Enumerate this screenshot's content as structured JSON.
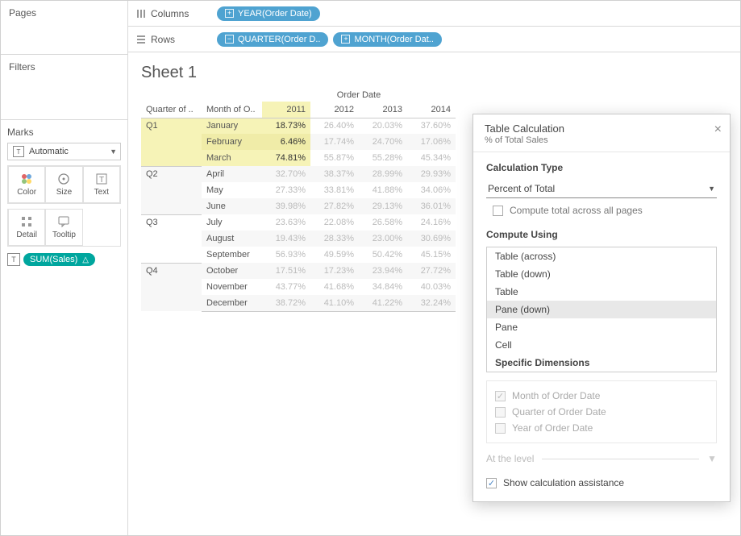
{
  "leftPanels": {
    "pages": "Pages",
    "filters": "Filters",
    "marks": "Marks",
    "marksType": "Automatic",
    "cells": {
      "color": "Color",
      "size": "Size",
      "text": "Text",
      "detail": "Detail",
      "tooltip": "Tooltip"
    },
    "sumPill": "SUM(Sales)"
  },
  "shelves": {
    "columns": "Columns",
    "rows": "Rows",
    "colPill": "YEAR(Order Date)",
    "rowPill1": "QUARTER(Order D..",
    "rowPill2": "MONTH(Order Dat.."
  },
  "sheet": {
    "title": "Sheet 1",
    "superHeader": "Order Date",
    "rowHdr1": "Quarter of ..",
    "rowHdr2": "Month of O..",
    "years": [
      "2011",
      "2012",
      "2013",
      "2014"
    ],
    "highlightYearIndex": 0,
    "quarters": [
      {
        "q": "Q1",
        "months": [
          "January",
          "February",
          "March"
        ],
        "vals": [
          [
            "18.73%",
            "26.40%",
            "20.03%",
            "37.60%"
          ],
          [
            "6.46%",
            "17.74%",
            "24.70%",
            "17.06%"
          ],
          [
            "74.81%",
            "55.87%",
            "55.28%",
            "45.34%"
          ]
        ]
      },
      {
        "q": "Q2",
        "months": [
          "April",
          "May",
          "June"
        ],
        "vals": [
          [
            "32.70%",
            "38.37%",
            "28.99%",
            "29.93%"
          ],
          [
            "27.33%",
            "33.81%",
            "41.88%",
            "34.06%"
          ],
          [
            "39.98%",
            "27.82%",
            "29.13%",
            "36.01%"
          ]
        ]
      },
      {
        "q": "Q3",
        "months": [
          "July",
          "August",
          "September"
        ],
        "vals": [
          [
            "23.63%",
            "22.08%",
            "26.58%",
            "24.16%"
          ],
          [
            "19.43%",
            "28.33%",
            "23.00%",
            "30.69%"
          ],
          [
            "56.93%",
            "49.59%",
            "50.42%",
            "45.15%"
          ]
        ]
      },
      {
        "q": "Q4",
        "months": [
          "October",
          "November",
          "December"
        ],
        "vals": [
          [
            "17.51%",
            "17.23%",
            "23.94%",
            "27.72%"
          ],
          [
            "43.77%",
            "41.68%",
            "34.84%",
            "40.03%"
          ],
          [
            "38.72%",
            "41.10%",
            "41.22%",
            "32.24%"
          ]
        ]
      }
    ]
  },
  "dialog": {
    "title": "Table Calculation",
    "subtitle": "% of Total Sales",
    "calcTypeLabel": "Calculation Type",
    "calcTypeValue": "Percent of Total",
    "computeAllPages": "Compute total across all pages",
    "computeUsingLabel": "Compute Using",
    "options": [
      "Table (across)",
      "Table (down)",
      "Table",
      "Pane (down)",
      "Pane",
      "Cell",
      "Specific Dimensions"
    ],
    "selectedIndex": 3,
    "boldIndex": 6,
    "dims": [
      "Month of Order Date",
      "Quarter of Order Date",
      "Year of Order Date"
    ],
    "dimChecked": [
      true,
      false,
      false
    ],
    "atLevel": "At the level",
    "showAssist": "Show calculation assistance"
  }
}
